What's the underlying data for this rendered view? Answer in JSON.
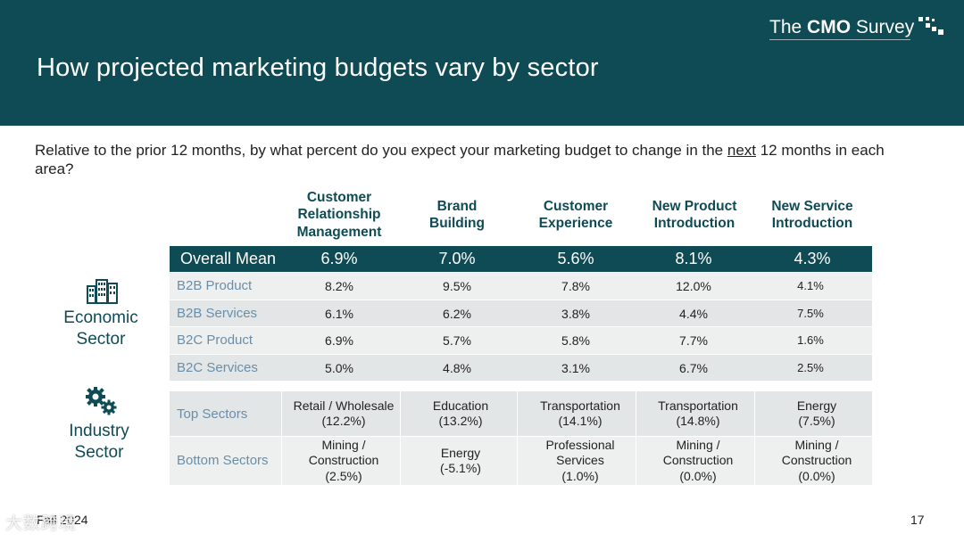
{
  "header": {
    "title": "How projected marketing budgets vary by sector",
    "logo": {
      "prefix": "The ",
      "bold": "CMO",
      "suffix": " Survey",
      "icon": "dot-grid-icon"
    },
    "background": "#0e4b55"
  },
  "question": {
    "before": "Relative to the prior 12 months, by what percent do you expect your marketing budget to change in the ",
    "underlined": "next",
    "after": " 12 months in each area?"
  },
  "columns": [
    {
      "line1": "Customer",
      "line2": "Relationship",
      "line3": "Management"
    },
    {
      "line1": "Brand",
      "line2": "Building",
      "line3": ""
    },
    {
      "line1": "Customer",
      "line2": "Experience",
      "line3": ""
    },
    {
      "line1": "New Product",
      "line2": "Introduction",
      "line3": ""
    },
    {
      "line1": "New Service",
      "line2": "Introduction",
      "line3": ""
    }
  ],
  "overall_mean": {
    "label": "Overall Mean",
    "values": [
      "6.9%",
      "7.0%",
      "5.6%",
      "8.1%",
      "4.3%"
    ]
  },
  "economic_sector": {
    "label_line1": "Economic",
    "label_line2": "Sector",
    "icon": "buildings-icon",
    "rows": [
      {
        "label": "B2B Product",
        "values": [
          "8.2%",
          "9.5%",
          "7.8%",
          "12.0%",
          "4.1%"
        ]
      },
      {
        "label": "B2B Services",
        "values": [
          "6.1%",
          "6.2%",
          "3.8%",
          "4.4%",
          "7.5%"
        ]
      },
      {
        "label": "B2C Product",
        "values": [
          "6.9%",
          "5.7%",
          "5.8%",
          "7.7%",
          "1.6%"
        ]
      },
      {
        "label": "B2C Services",
        "values": [
          "5.0%",
          "4.8%",
          "3.1%",
          "6.7%",
          "2.5%"
        ]
      }
    ]
  },
  "industry_sector": {
    "label_line1": "Industry",
    "label_line2": "Sector",
    "icon": "gears-icon",
    "top": {
      "label": "Top Sectors",
      "cells": [
        {
          "line1": "Retail / Wholesale",
          "line2": "(12.2%)",
          "line3": ""
        },
        {
          "line1": "Education",
          "line2": "(13.2%)",
          "line3": ""
        },
        {
          "line1": "Transportation",
          "line2": "(14.1%)",
          "line3": ""
        },
        {
          "line1": "Transportation",
          "line2": "(14.8%)",
          "line3": ""
        },
        {
          "line1": "Energy",
          "line2": "(7.5%)",
          "line3": ""
        }
      ]
    },
    "bottom": {
      "label": "Bottom Sectors",
      "cells": [
        {
          "line1": "Mining /",
          "line2": "Construction",
          "line3": "(2.5%)"
        },
        {
          "line1": "Energy",
          "line2": "(-5.1%)",
          "line3": ""
        },
        {
          "line1": "Professional",
          "line2": "Services",
          "line3": "(1.0%)"
        },
        {
          "line1": "Mining /",
          "line2": "Construction",
          "line3": "(0.0%)"
        },
        {
          "line1": "Mining /",
          "line2": "Construction",
          "line3": "(0.0%)"
        }
      ]
    }
  },
  "footer": {
    "date": "Fall 2024",
    "page_number": "17",
    "watermark": "大数跨境"
  }
}
